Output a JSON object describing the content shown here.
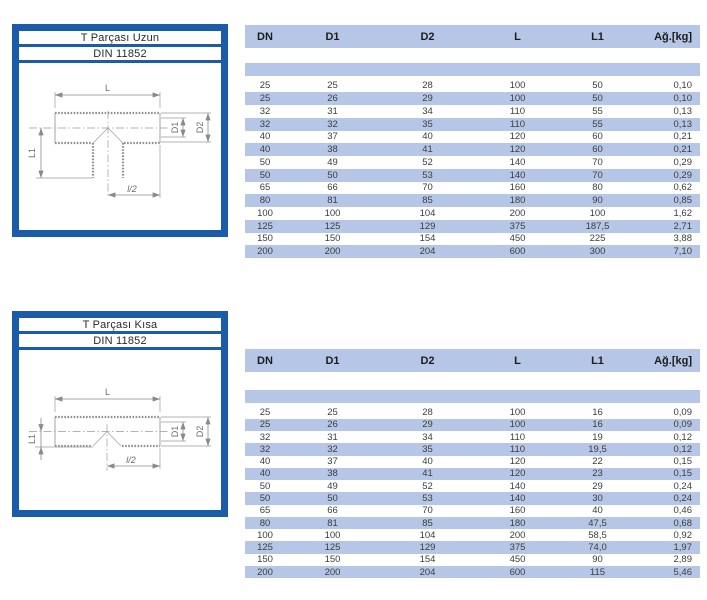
{
  "colors": {
    "frame_blue": "#1b5ca8",
    "row_blue": "#b6c6e6"
  },
  "panels": [
    {
      "title": "T Parçası Uzun",
      "standard": "DIN 11852",
      "labels": {
        "L": "L",
        "L1": "L1",
        "D1": "D1",
        "D2": "D2",
        "L_half": "l/2"
      }
    },
    {
      "title": "T Parçası Kısa",
      "standard": "DIN 11852",
      "labels": {
        "L": "L",
        "L1": "L1",
        "D1": "D1",
        "D2": "D2",
        "L_half": "l/2"
      }
    }
  ],
  "tables": [
    {
      "headers": [
        "DN",
        "D1",
        "D2",
        "L",
        "L1",
        "Ağ.[kg]"
      ],
      "rows": [
        [
          "25",
          "25",
          "28",
          "100",
          "50",
          "0,10"
        ],
        [
          "25",
          "26",
          "29",
          "100",
          "50",
          "0,10"
        ],
        [
          "32",
          "31",
          "34",
          "110",
          "55",
          "0,13"
        ],
        [
          "32",
          "32",
          "35",
          "110",
          "55",
          "0,13"
        ],
        [
          "40",
          "37",
          "40",
          "120",
          "60",
          "0,21"
        ],
        [
          "40",
          "38",
          "41",
          "120",
          "60",
          "0,21"
        ],
        [
          "50",
          "49",
          "52",
          "140",
          "70",
          "0,29"
        ],
        [
          "50",
          "50",
          "53",
          "140",
          "70",
          "0,29"
        ],
        [
          "65",
          "66",
          "70",
          "160",
          "80",
          "0,62"
        ],
        [
          "80",
          "81",
          "85",
          "180",
          "90",
          "0,85"
        ],
        [
          "100",
          "100",
          "104",
          "200",
          "100",
          "1,62"
        ],
        [
          "125",
          "125",
          "129",
          "375",
          "187,5",
          "2,71"
        ],
        [
          "150",
          "150",
          "154",
          "450",
          "225",
          "3,88"
        ],
        [
          "200",
          "200",
          "204",
          "600",
          "300",
          "7,10"
        ]
      ]
    },
    {
      "headers": [
        "DN",
        "D1",
        "D2",
        "L",
        "L1",
        "Ağ.[kg]"
      ],
      "rows": [
        [
          "25",
          "25",
          "28",
          "100",
          "16",
          "0,09"
        ],
        [
          "25",
          "26",
          "29",
          "100",
          "16",
          "0,09"
        ],
        [
          "32",
          "31",
          "34",
          "110",
          "19",
          "0,12"
        ],
        [
          "32",
          "32",
          "35",
          "110",
          "19,5",
          "0,12"
        ],
        [
          "40",
          "37",
          "40",
          "120",
          "22",
          "0,15"
        ],
        [
          "40",
          "38",
          "41",
          "120",
          "23",
          "0,15"
        ],
        [
          "50",
          "49",
          "52",
          "140",
          "29",
          "0,24"
        ],
        [
          "50",
          "50",
          "53",
          "140",
          "30",
          "0,24"
        ],
        [
          "65",
          "66",
          "70",
          "160",
          "40",
          "0,46"
        ],
        [
          "80",
          "81",
          "85",
          "180",
          "47,5",
          "0,68"
        ],
        [
          "100",
          "100",
          "104",
          "200",
          "58,5",
          "0,92"
        ],
        [
          "125",
          "125",
          "129",
          "375",
          "74,0",
          "1,97"
        ],
        [
          "150",
          "150",
          "154",
          "450",
          "90",
          "2,89"
        ],
        [
          "200",
          "200",
          "204",
          "600",
          "115",
          "5,46"
        ]
      ]
    }
  ]
}
